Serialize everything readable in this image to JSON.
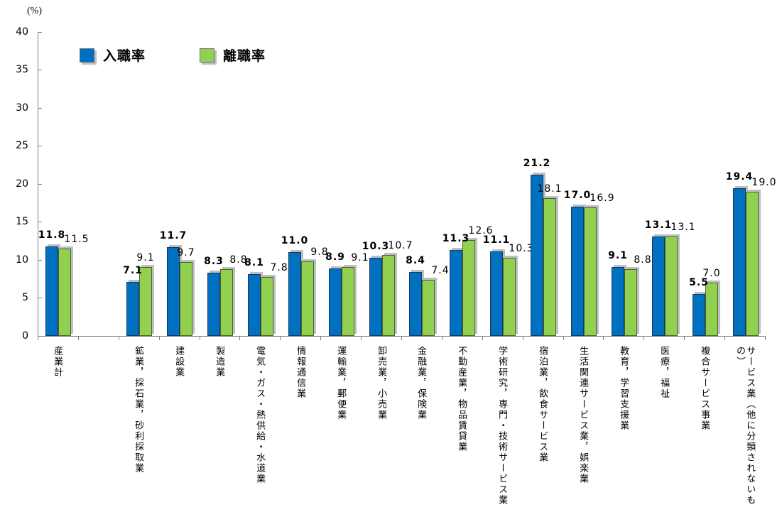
{
  "chart_data": {
    "type": "bar",
    "title": "",
    "unit": "(%)",
    "grid": false,
    "legend_position": "top-left-inside",
    "ylim": [
      0,
      40
    ],
    "yticks": [
      0,
      5,
      10,
      15,
      20,
      25,
      30,
      35,
      40
    ],
    "categories": [
      "産業計",
      "",
      "鉱業，採石業，砂利採取業",
      "建設業",
      "製造業",
      "電気・ガス・熱供給・水道業",
      "情報通信業",
      "運輸業，郵便業",
      "卸売業，小売業",
      "金融業，保険業",
      "不動産業，物品賃貸業",
      "学術研究，専門・技術サービス業",
      "宿泊業，飲食サービス業",
      "生活関連サービス業，娯楽業",
      "教育，学習支援業",
      "医療，福祉",
      "複合サービス事業",
      "サービス業（他に分類されないもの）"
    ],
    "series": [
      {
        "name": "入職率",
        "color": "#0070C0",
        "border_color": "#17375E",
        "values": [
          11.8,
          null,
          7.1,
          11.7,
          8.3,
          8.1,
          11.0,
          8.9,
          10.3,
          8.4,
          11.3,
          11.1,
          21.2,
          17.0,
          9.1,
          13.1,
          5.5,
          19.4
        ]
      },
      {
        "name": "離職率",
        "color": "#92D050",
        "border_color": "#4F6228",
        "values": [
          11.5,
          null,
          9.1,
          9.7,
          8.8,
          7.8,
          9.8,
          9.1,
          10.7,
          7.4,
          12.6,
          10.3,
          18.1,
          16.9,
          8.8,
          13.1,
          7.0,
          19.0
        ]
      }
    ],
    "value_label_decimals": 1
  }
}
